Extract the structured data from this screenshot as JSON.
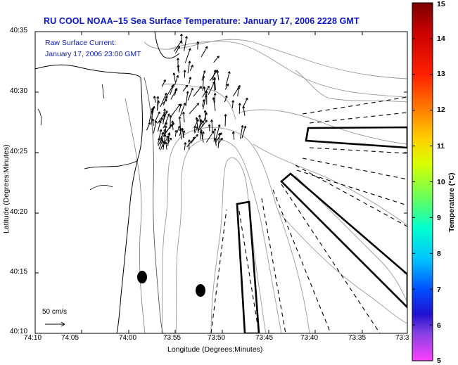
{
  "title": "RU COOL  NOAA–15  Sea Surface Temperature:  January 17, 2006 2228 GMT",
  "current_label_line1": "Raw Surface Current:",
  "current_label_line2": "January 17, 2006 23:00 GMT",
  "x_axis_label": "Longitude (Degrees:Minutes)",
  "y_axis_label": "Latitude (Degrees:Minutes)",
  "x_ticks": [
    "74:10",
    "74:05",
    "74:00",
    "73:55",
    "73:50",
    "73:45",
    "73:40",
    "73:35",
    "73:3"
  ],
  "y_ticks": [
    "40:35",
    "40:30",
    "40:25",
    "40:20",
    "40:15",
    "40:10"
  ],
  "scale_arrow_label": "50 cm/s",
  "colorbar": {
    "title": "Temperature (°C)",
    "ticks": [
      "15",
      "14",
      "13",
      "12",
      "11",
      "10",
      "9",
      "8",
      "7",
      "6",
      "5"
    ],
    "range": [
      5,
      15
    ]
  }
}
